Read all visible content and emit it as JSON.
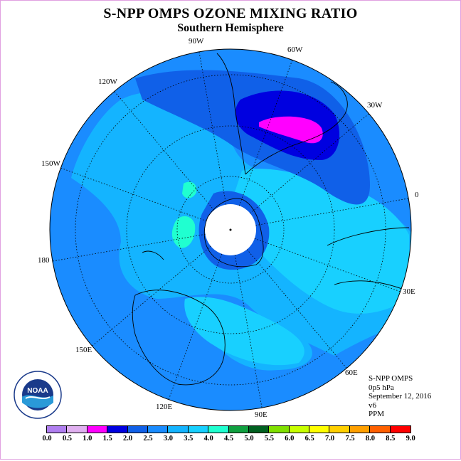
{
  "title": "S-NPP OMPS OZONE MIXING RATIO",
  "subtitle": "Southern Hemisphere",
  "longitude_labels": [
    "90W",
    "60W",
    "30W",
    "0",
    "30E",
    "60E",
    "90E",
    "120E",
    "150E",
    "180",
    "150W",
    "120W"
  ],
  "info": {
    "instrument": "S-NPP OMPS",
    "level": "0p5 hPa",
    "date": "September 12, 2016",
    "version": "v6",
    "units": "PPM"
  },
  "logo_text": "NOAA",
  "colorbar": {
    "ticks": [
      "0.0",
      "0.5",
      "1.0",
      "1.5",
      "2.0",
      "2.5",
      "3.0",
      "3.5",
      "4.0",
      "4.5",
      "5.0",
      "5.5",
      "6.0",
      "6.5",
      "7.0",
      "7.5",
      "8.0",
      "8.5",
      "9.0"
    ],
    "colors": [
      "#b07ff0",
      "#e0b0f0",
      "#ff00ff",
      "#0000e0",
      "#1060e8",
      "#1a8cff",
      "#14b4ff",
      "#18d0ff",
      "#20ffd0",
      "#10a040",
      "#006020",
      "#80e000",
      "#c8ff00",
      "#ffff00",
      "#ffd000",
      "#ffa000",
      "#ff6000",
      "#ff0000",
      "#8b5a3c"
    ]
  },
  "map": {
    "background_color": "#1a8cff",
    "polar_hole_color": "#ffffff"
  }
}
